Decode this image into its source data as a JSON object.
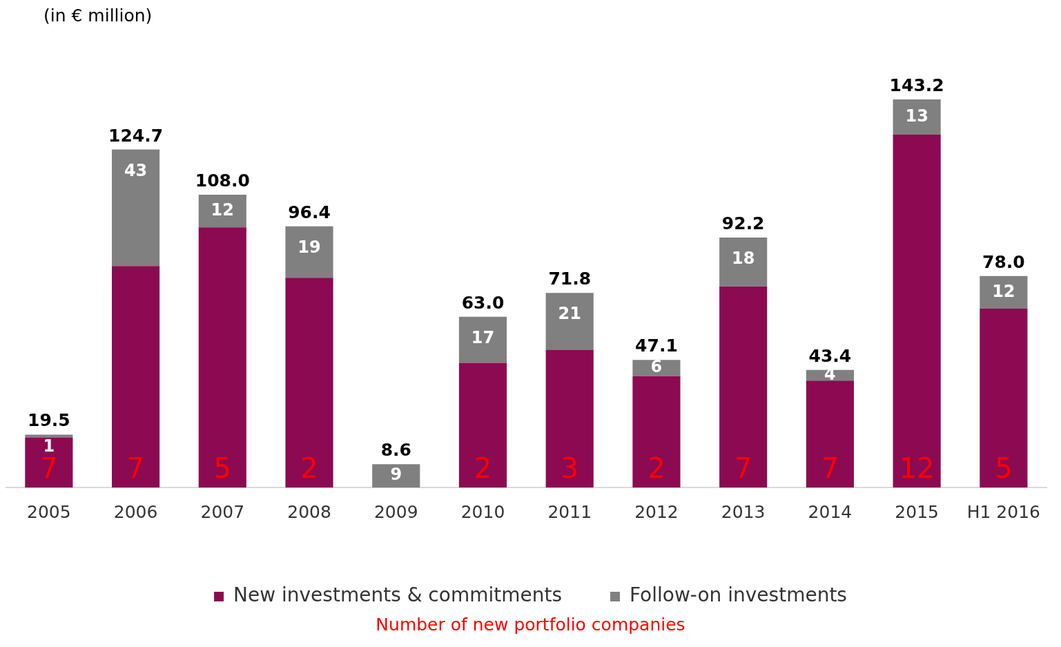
{
  "chart_data": {
    "type": "bar",
    "title": "(in € million)",
    "stacked": true,
    "categories": [
      "2005",
      "2006",
      "2007",
      "2008",
      "2009",
      "2010",
      "2011",
      "2012",
      "2013",
      "2014",
      "2015",
      "H1 2016"
    ],
    "series": [
      {
        "name": "New investments & commitments",
        "color": "#8c0a52",
        "values": [
          18.5,
          81.7,
          96.0,
          77.4,
          null,
          46.0,
          50.8,
          41.1,
          74.2,
          39.4,
          130.2,
          66.0
        ]
      },
      {
        "name": "Follow-on investments",
        "color": "#808080",
        "values": [
          1,
          43,
          12,
          19,
          8.6,
          17,
          21,
          6,
          18,
          4,
          13,
          12
        ],
        "value_labels": [
          "1",
          "43",
          "12",
          "19",
          "9",
          "17",
          "21",
          "6",
          "18",
          "4",
          "13",
          "12"
        ]
      }
    ],
    "totals": [
      "19.5",
      "124.7",
      "108.0",
      "96.4",
      "8.6",
      "63.0",
      "71.8",
      "47.1",
      "92.2",
      "43.4",
      "143.2",
      "78.0"
    ],
    "tick_labels": "x",
    "grid": false,
    "legend": "bottom",
    "annotations": [
      {
        "text": "7",
        "x": "2005",
        "y": 0
      },
      {
        "text": "7",
        "x": "2006",
        "y": 0
      },
      {
        "text": "5",
        "x": "2007",
        "y": 0
      },
      {
        "text": "2",
        "x": "2008",
        "y": 0
      },
      {
        "text": "2",
        "x": "2010",
        "y": 0
      },
      {
        "text": "3",
        "x": "2011",
        "y": 0
      },
      {
        "text": "2",
        "x": "2012",
        "y": 0
      },
      {
        "text": "7",
        "x": "2013",
        "y": 0
      },
      {
        "text": "7",
        "x": "2014",
        "y": 0
      },
      {
        "text": "12",
        "x": "2015",
        "y": 0
      },
      {
        "text": "5",
        "x": "H1 2016",
        "y": 0
      },
      "Number of new portfolio companies"
    ]
  }
}
